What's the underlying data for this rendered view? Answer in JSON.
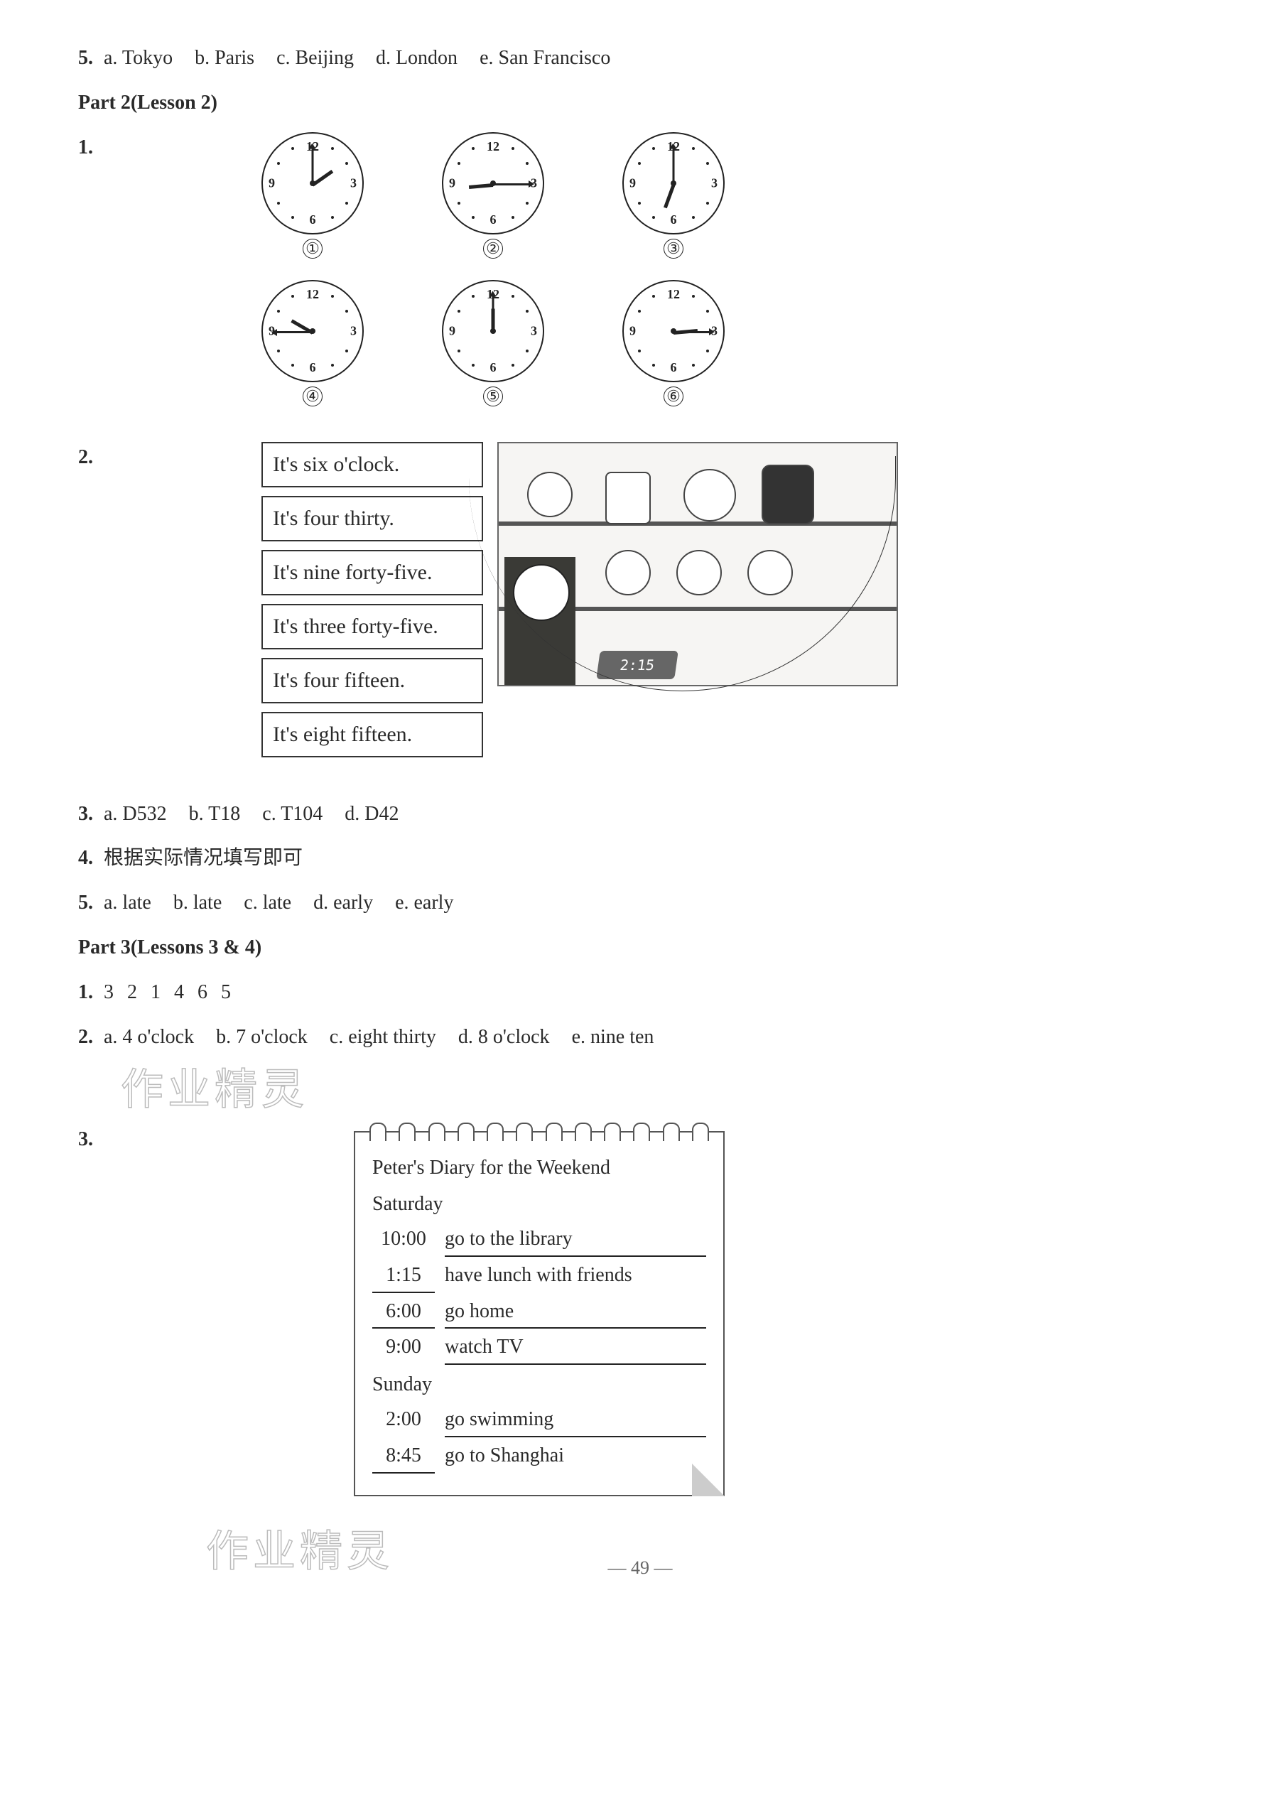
{
  "q5_top": {
    "num": "5.",
    "opts": [
      "a. Tokyo",
      "b. Paris",
      "c. Beijing",
      "d. London",
      "e. San Francisco"
    ]
  },
  "part2": {
    "title": "Part 2(Lesson 2)"
  },
  "p2q1": {
    "num": "1.",
    "clocks": [
      {
        "label": "①",
        "hour_deg": -35,
        "min_deg": -90
      },
      {
        "label": "②",
        "hour_deg": 175,
        "min_deg": 0
      },
      {
        "label": "③",
        "hour_deg": 110,
        "min_deg": -90
      },
      {
        "label": "④",
        "hour_deg": 210,
        "min_deg": 180
      },
      {
        "label": "⑤",
        "hour_deg": -90,
        "min_deg": -90
      },
      {
        "label": "⑥",
        "hour_deg": -5,
        "min_deg": 0
      }
    ]
  },
  "p2q2": {
    "num": "2.",
    "boxes": [
      "It's six o'clock.",
      "It's four thirty.",
      "It's nine forty-five.",
      "It's three forty-five.",
      "It's four fifteen.",
      "It's eight fifteen."
    ],
    "digital": "2:15"
  },
  "p2q3": {
    "num": "3.",
    "opts": [
      "a. D532",
      "b. T18",
      "c. T104",
      "d. D42"
    ]
  },
  "p2q4": {
    "num": "4.",
    "text": "根据实际情况填写即可"
  },
  "p2q5": {
    "num": "5.",
    "opts": [
      "a. late",
      "b. late",
      "c. late",
      "d. early",
      "e. early"
    ]
  },
  "part3": {
    "title": "Part 3(Lessons 3 & 4)"
  },
  "p3q1": {
    "num": "1.",
    "seq": "3  2  1  4  6  5"
  },
  "p3q2": {
    "num": "2.",
    "opts": [
      "a. 4 o'clock",
      "b. 7 o'clock",
      "c. eight thirty",
      "d. 8 o'clock",
      "e. nine ten"
    ]
  },
  "p3q3": {
    "num": "3."
  },
  "diary": {
    "title": "Peter's Diary for the Weekend",
    "sat": "Saturday",
    "sun": "Sunday",
    "rows_sat": [
      {
        "t": "10:00",
        "a": "go to the library",
        "t_u": false
      },
      {
        "t": "1:15",
        "a": "have lunch with friends",
        "t_u": true,
        "a_noline": true
      },
      {
        "t": "6:00",
        "a": "go home",
        "t_u": true
      },
      {
        "t": "9:00",
        "a": "watch TV",
        "t_u": false
      }
    ],
    "rows_sun": [
      {
        "t": "2:00",
        "a": "go swimming",
        "t_u": false
      },
      {
        "t": "8:45",
        "a": "go to Shanghai",
        "t_u": true,
        "a_noline": true
      }
    ]
  },
  "watermark": "作业精灵",
  "page_num": "— 49 —"
}
